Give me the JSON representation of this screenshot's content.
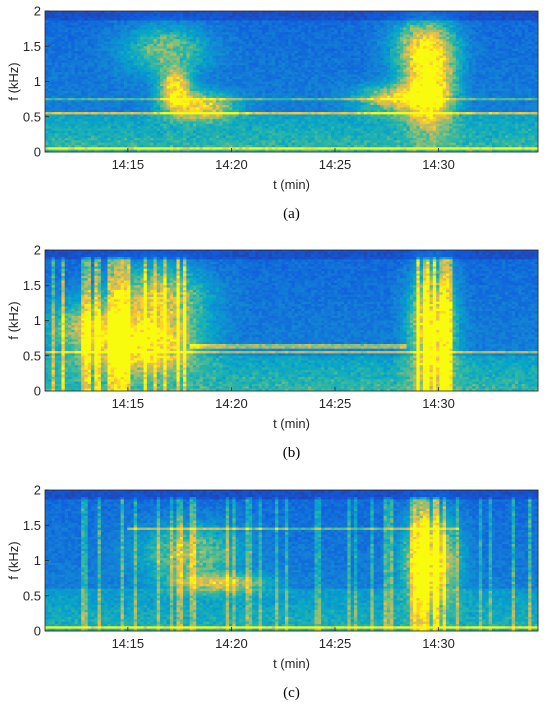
{
  "chart_data": [
    {
      "type": "heatmap",
      "panel": "a",
      "caption": "(a)",
      "xlabel": "t (min)",
      "ylabel": "f (kHz)",
      "x_range_min": [
        11.0,
        34.8
      ],
      "ylim": [
        0,
        2
      ],
      "x_ticks": [
        15,
        20,
        25,
        30
      ],
      "x_tick_labels": [
        "14:15",
        "14:20",
        "14:25",
        "14:30"
      ],
      "y_ticks": [
        0,
        0.5,
        1,
        1.5,
        2
      ],
      "y_tick_labels": [
        "0",
        "0.5",
        "1",
        "1.5",
        "2"
      ],
      "colormap": "parula",
      "colors": [
        "#352a87",
        "#0f5cdd",
        "#1481d6",
        "#06a4ca",
        "#2eb7a4",
        "#87bf77",
        "#d1bb59",
        "#fec832",
        "#f9fb0e"
      ],
      "features": [
        {
          "kind": "band",
          "f_low": 0.0,
          "f_high": 0.55,
          "t_start": 11.0,
          "t_end": 34.8,
          "intensity": 0.45
        },
        {
          "kind": "line",
          "f": 0.55,
          "t_start": 11.0,
          "t_end": 34.8,
          "intensity": 0.6
        },
        {
          "kind": "line",
          "f": 0.05,
          "t_start": 11.0,
          "t_end": 34.8,
          "intensity": 0.7
        },
        {
          "kind": "line",
          "f": 0.75,
          "t_start": 11.0,
          "t_end": 34.8,
          "intensity": 0.4
        },
        {
          "kind": "blob",
          "t": 17.3,
          "f": 0.9,
          "dt": 0.7,
          "df": 0.25,
          "intensity": 0.9
        },
        {
          "kind": "blob",
          "t": 18.5,
          "f": 0.65,
          "dt": 1.6,
          "df": 0.18,
          "intensity": 0.8
        },
        {
          "kind": "blob",
          "t": 16.8,
          "f": 1.45,
          "dt": 2.0,
          "df": 0.35,
          "intensity": 0.5
        },
        {
          "kind": "blob",
          "t": 29.6,
          "f": 0.9,
          "dt": 1.1,
          "df": 0.55,
          "intensity": 1.0
        },
        {
          "kind": "blob",
          "t": 29.3,
          "f": 1.5,
          "dt": 1.5,
          "df": 0.4,
          "intensity": 0.7
        },
        {
          "kind": "blob",
          "t": 28.0,
          "f": 0.75,
          "dt": 1.8,
          "df": 0.2,
          "intensity": 0.7
        }
      ]
    },
    {
      "type": "heatmap",
      "panel": "b",
      "caption": "(b)",
      "xlabel": "t (min)",
      "ylabel": "f (kHz)",
      "x_range_min": [
        11.0,
        34.8
      ],
      "ylim": [
        0,
        2
      ],
      "x_ticks": [
        15,
        20,
        25,
        30
      ],
      "x_tick_labels": [
        "14:15",
        "14:20",
        "14:25",
        "14:30"
      ],
      "y_ticks": [
        0,
        0.5,
        1,
        1.5,
        2
      ],
      "y_tick_labels": [
        "0",
        "0.5",
        "1",
        "1.5",
        "2"
      ],
      "colormap": "parula",
      "colors": [
        "#352a87",
        "#0f5cdd",
        "#1481d6",
        "#06a4ca",
        "#2eb7a4",
        "#87bf77",
        "#d1bb59",
        "#fec832",
        "#f9fb0e"
      ],
      "features": [
        {
          "kind": "band",
          "f_low": 0.0,
          "f_high": 0.5,
          "t_start": 11.0,
          "t_end": 34.8,
          "intensity": 0.45
        },
        {
          "kind": "line",
          "f": 0.55,
          "t_start": 11.0,
          "t_end": 34.8,
          "intensity": 0.6
        },
        {
          "kind": "line",
          "f": 0.62,
          "t_start": 18.0,
          "t_end": 28.5,
          "intensity": 0.55
        },
        {
          "kind": "blob",
          "t": 15.8,
          "f": 0.65,
          "dt": 2.4,
          "df": 0.35,
          "intensity": 0.9
        },
        {
          "kind": "blob",
          "t": 16.5,
          "f": 1.3,
          "dt": 2.2,
          "df": 0.45,
          "intensity": 0.7
        },
        {
          "kind": "blob",
          "t": 13.0,
          "f": 0.9,
          "dt": 2.0,
          "df": 0.4,
          "intensity": 0.5
        },
        {
          "kind": "blob",
          "t": 29.7,
          "f": 0.9,
          "dt": 1.0,
          "df": 0.8,
          "intensity": 1.0
        },
        {
          "kind": "stripes",
          "t_start": 11.2,
          "t_end": 17.8,
          "count": 22,
          "intensity": 0.85
        },
        {
          "kind": "stripes",
          "t_start": 28.6,
          "t_end": 30.8,
          "count": 10,
          "intensity": 0.9
        }
      ]
    },
    {
      "type": "heatmap",
      "panel": "c",
      "caption": "(c)",
      "xlabel": "t (min)",
      "ylabel": "f (kHz)",
      "x_range_min": [
        11.0,
        34.8
      ],
      "ylim": [
        0,
        2
      ],
      "x_ticks": [
        15,
        20,
        25,
        30
      ],
      "x_tick_labels": [
        "14:15",
        "14:20",
        "14:25",
        "14:30"
      ],
      "y_ticks": [
        0,
        0.5,
        1,
        1.5,
        2
      ],
      "y_tick_labels": [
        "0",
        "0.5",
        "1",
        "1.5",
        "2"
      ],
      "colormap": "parula",
      "colors": [
        "#352a87",
        "#0f5cdd",
        "#1481d6",
        "#06a4ca",
        "#2eb7a4",
        "#87bf77",
        "#d1bb59",
        "#fec832",
        "#f9fb0e"
      ],
      "features": [
        {
          "kind": "band",
          "f_low": 0.0,
          "f_high": 0.6,
          "t_start": 11.0,
          "t_end": 34.8,
          "intensity": 0.35
        },
        {
          "kind": "line",
          "f": 1.45,
          "t_start": 15.0,
          "t_end": 31.0,
          "intensity": 0.5
        },
        {
          "kind": "line",
          "f": 0.05,
          "t_start": 11.0,
          "t_end": 34.8,
          "intensity": 0.8
        },
        {
          "kind": "blob",
          "t": 18.0,
          "f": 1.1,
          "dt": 2.4,
          "df": 0.4,
          "intensity": 0.5
        },
        {
          "kind": "blob",
          "t": 19.5,
          "f": 0.68,
          "dt": 2.2,
          "df": 0.12,
          "intensity": 0.6
        },
        {
          "kind": "blob",
          "t": 29.6,
          "f": 1.0,
          "dt": 1.2,
          "df": 0.6,
          "intensity": 1.0
        },
        {
          "kind": "stripes",
          "t_start": 11.2,
          "t_end": 34.5,
          "count": 40,
          "intensity": 0.55
        },
        {
          "kind": "stripes",
          "t_start": 28.2,
          "t_end": 30.4,
          "count": 9,
          "intensity": 0.95
        }
      ]
    }
  ]
}
